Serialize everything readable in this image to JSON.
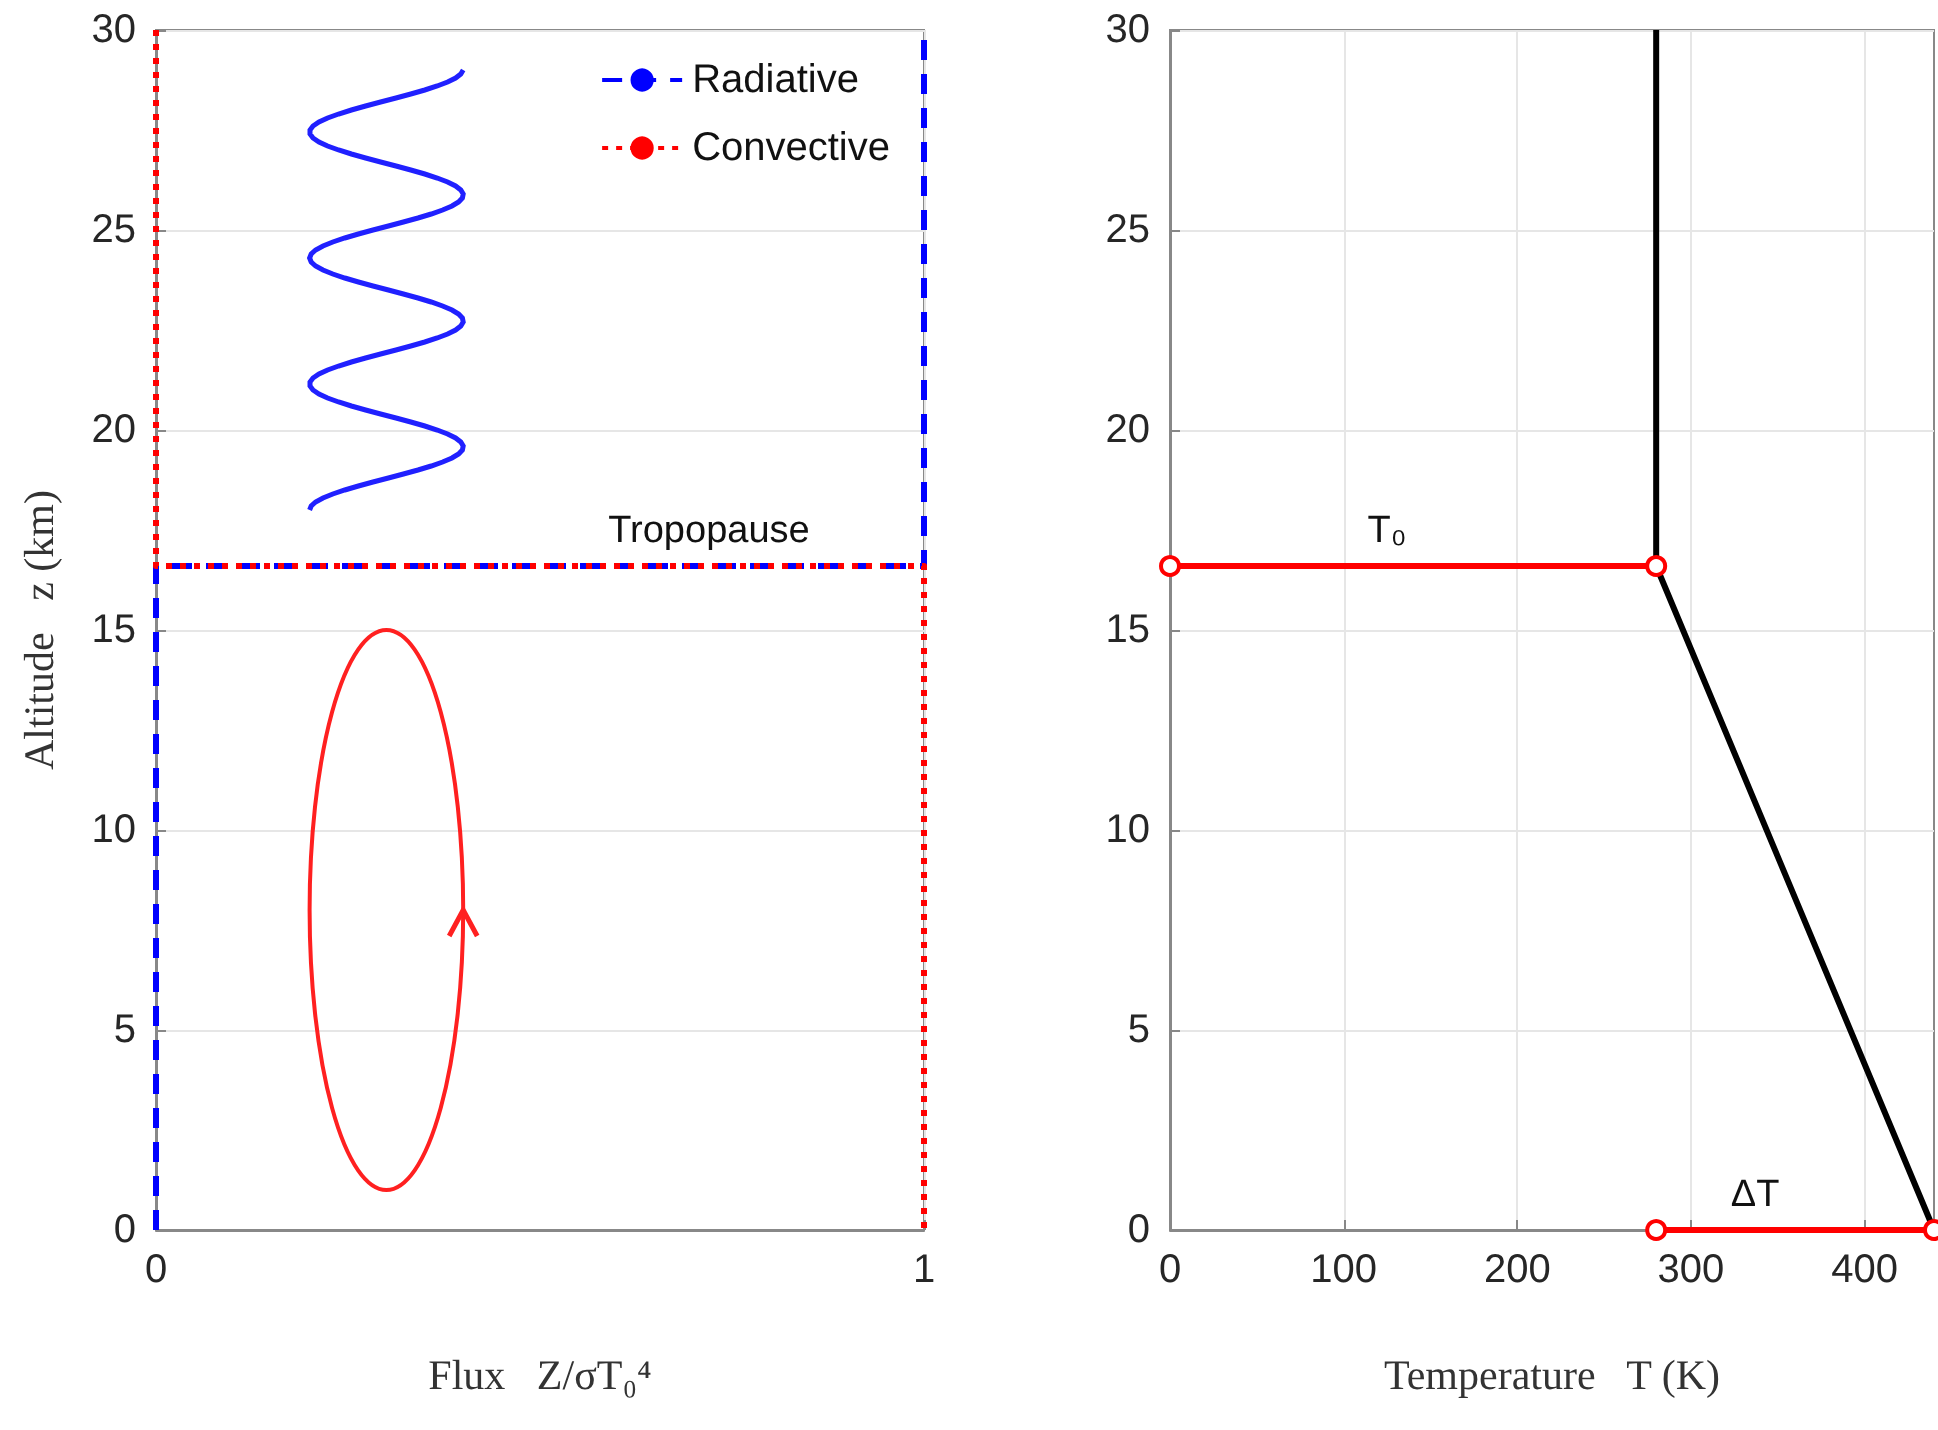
{
  "chart_data": [
    {
      "type": "line",
      "xlabel": "Flux   Z/σT₀⁴",
      "ylabel": "Altitude   z (km)",
      "xlim": [
        0,
        1
      ],
      "xticks": [
        0,
        1
      ],
      "ylim": [
        0,
        30
      ],
      "yticks": [
        0,
        5,
        10,
        15,
        20,
        25,
        30
      ],
      "grid": true,
      "legend": "top right",
      "marker": "none",
      "annotations": [
        {
          "text": "Tropopause",
          "x": 0.72,
          "y": 16.6
        }
      ],
      "series": [
        {
          "name": "Radiative",
          "color": "#0000ff",
          "line_style": "dashed",
          "x": [
            0,
            0,
            1,
            1
          ],
          "values": [
            0,
            16.6,
            16.6,
            30
          ]
        },
        {
          "name": "Convective",
          "color": "#ff0000",
          "line_style": "dotted",
          "x": [
            0,
            0,
            1,
            1
          ],
          "values": [
            30,
            16.6,
            16.6,
            0
          ]
        }
      ]
    },
    {
      "type": "line",
      "xlabel": "Temperature   T (K)",
      "xlim": [
        0,
        440
      ],
      "xticks": [
        0,
        100,
        200,
        300,
        400
      ],
      "ylim": [
        0,
        30
      ],
      "yticks": [
        0,
        5,
        10,
        15,
        20,
        25,
        30
      ],
      "grid": true,
      "marker": "none",
      "annotations": [
        {
          "text": "T₀",
          "x": 125,
          "y": 16.6
        },
        {
          "text": "ΔT",
          "x": 337,
          "y": 0
        }
      ],
      "series": [
        {
          "color": "#000000",
          "line_style": "solid",
          "x": [
            440,
            280,
            280
          ],
          "values": [
            0,
            16.6,
            30
          ]
        },
        {
          "color": "#ff0000",
          "line_style": "solid",
          "marker": "circle",
          "x": [
            0,
            280
          ],
          "values": [
            16.6,
            16.6
          ]
        },
        {
          "color": "#ff0000",
          "line_style": "solid",
          "marker": "circle",
          "x": [
            280,
            440
          ],
          "values": [
            0,
            0
          ]
        }
      ]
    }
  ]
}
